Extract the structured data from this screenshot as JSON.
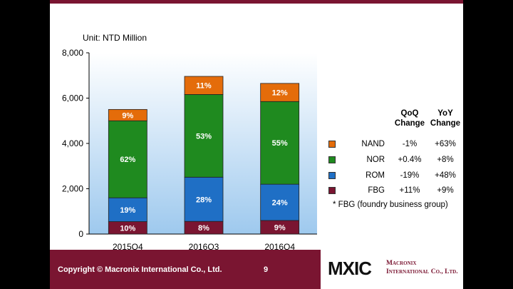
{
  "unit_label": "Unit: NTD Million",
  "colors": {
    "accent": "#7a1531",
    "NAND": "#e46c0a",
    "NOR": "#1f8a1f",
    "ROM": "#1f6fc5",
    "FBG": "#7a1531",
    "plot_bg_top": "#ffffff",
    "plot_bg_bottom": "#9ec9ee"
  },
  "chart_data": {
    "type": "bar",
    "stacked": true,
    "categories": [
      "2015Q4",
      "2016Q3",
      "2016Q4"
    ],
    "ylim": [
      0,
      8000
    ],
    "yticks": [
      0,
      2000,
      4000,
      6000,
      8000
    ],
    "ytick_labels": [
      "0",
      "2,000",
      "4,000",
      "6,000",
      "8,000"
    ],
    "xlabel": "",
    "ylabel": "",
    "series": [
      {
        "name": "FBG",
        "values": [
          550,
          560,
          600
        ],
        "labels": [
          "10%",
          "8%",
          "9%"
        ]
      },
      {
        "name": "ROM",
        "values": [
          1050,
          1950,
          1600
        ],
        "labels": [
          "19%",
          "28%",
          "24%"
        ]
      },
      {
        "name": "NOR",
        "values": [
          3400,
          3650,
          3650
        ],
        "labels": [
          "62%",
          "53%",
          "55%"
        ]
      },
      {
        "name": "NAND",
        "values": [
          500,
          800,
          800
        ],
        "labels": [
          "9%",
          "11%",
          "12%"
        ]
      }
    ],
    "legend": {
      "placement": "right",
      "headers": {
        "qoq": "QoQ\nChange",
        "yoy": "YoY\nChange"
      },
      "rows": [
        {
          "name": "NAND",
          "qoq": "-1%",
          "yoy": "+63%"
        },
        {
          "name": "NOR",
          "qoq": "+0.4%",
          "yoy": "+8%"
        },
        {
          "name": "ROM",
          "qoq": "-19%",
          "yoy": "+48%"
        },
        {
          "name": "FBG",
          "qoq": "+11%",
          "yoy": "+9%"
        }
      ]
    },
    "footnote": "* FBG (foundry business group)"
  },
  "footer": {
    "copyright": "Copyright ©  Macronix International Co., Ltd.",
    "page_number": "9",
    "logo_text": "MXIC",
    "company_line1": "Macronix",
    "company_line2": "International Co., Ltd."
  }
}
